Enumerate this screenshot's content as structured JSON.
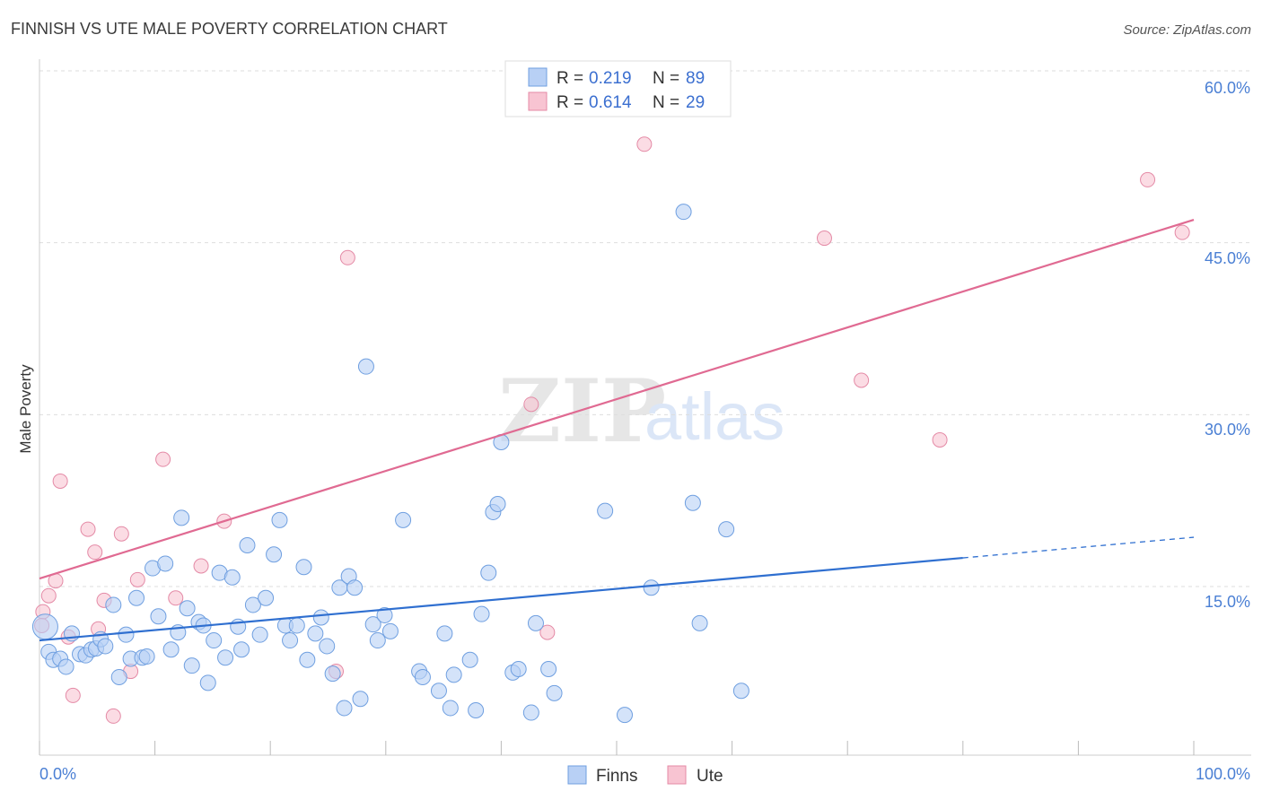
{
  "title": "FINNISH VS UTE MALE POVERTY CORRELATION CHART",
  "source": "Source: ZipAtlas.com",
  "watermark": {
    "zip": "ZIP",
    "atlas": "atlas"
  },
  "colors": {
    "finns_fill": "#b8d0f5",
    "finns_stroke": "#6f9fe0",
    "finns_line": "#2f6fd0",
    "ute_fill": "#f8c4d2",
    "ute_stroke": "#e48aa6",
    "ute_line": "#e06a92",
    "tick_text": "#4a7fd4",
    "grid": "#dddddd"
  },
  "legend_box": {
    "rows": [
      {
        "series": "Finns",
        "r_label": "R =",
        "r_value": "0.219",
        "n_label": "N =",
        "n_value": "89"
      },
      {
        "series": "Ute",
        "r_label": "R =",
        "r_value": "0.614",
        "n_label": "N =",
        "n_value": "29"
      }
    ]
  },
  "bottom_legend": [
    "Finns",
    "Ute"
  ],
  "chart_data": {
    "type": "scatter",
    "title": "FINNISH VS UTE MALE POVERTY CORRELATION CHART",
    "ylabel": "Male Poverty",
    "xlabel": "",
    "x_tick_labels": [
      "0.0%",
      "100.0%"
    ],
    "y_tick_labels": [
      "15.0%",
      "30.0%",
      "45.0%",
      "60.0%"
    ],
    "y_ticks": [
      15,
      30,
      45,
      60
    ],
    "xlim": [
      0,
      100
    ],
    "ylim": [
      0,
      62
    ],
    "grid": "horizontal dashed",
    "legend_position": "top-center",
    "series": [
      {
        "name": "Finns",
        "r": 0.219,
        "n": 89,
        "trend": {
          "x0": 0,
          "y0": 10.3,
          "x1": 80,
          "y1": 17.5,
          "dashed_to_x": 100,
          "dashed_to_y": 19.3
        },
        "points": [
          [
            0.5,
            11.5
          ],
          [
            0.8,
            9.3
          ],
          [
            1.2,
            8.6
          ],
          [
            1.8,
            8.7
          ],
          [
            2.3,
            8.0
          ],
          [
            2.8,
            10.9
          ],
          [
            3.5,
            9.1
          ],
          [
            4.0,
            9.0
          ],
          [
            4.5,
            9.5
          ],
          [
            4.9,
            9.6
          ],
          [
            5.3,
            10.4
          ],
          [
            5.7,
            9.8
          ],
          [
            6.4,
            13.4
          ],
          [
            6.9,
            7.1
          ],
          [
            7.5,
            10.8
          ],
          [
            7.9,
            8.7
          ],
          [
            8.4,
            14.0
          ],
          [
            8.9,
            8.8
          ],
          [
            9.3,
            8.9
          ],
          [
            9.8,
            16.6
          ],
          [
            10.3,
            12.4
          ],
          [
            10.9,
            17.0
          ],
          [
            11.4,
            9.5
          ],
          [
            12.0,
            11.0
          ],
          [
            12.3,
            21.0
          ],
          [
            12.8,
            13.1
          ],
          [
            13.2,
            8.1
          ],
          [
            13.8,
            11.9
          ],
          [
            14.2,
            11.6
          ],
          [
            14.6,
            6.6
          ],
          [
            15.1,
            10.3
          ],
          [
            15.6,
            16.2
          ],
          [
            16.1,
            8.8
          ],
          [
            16.7,
            15.8
          ],
          [
            17.2,
            11.5
          ],
          [
            17.5,
            9.5
          ],
          [
            18.0,
            18.6
          ],
          [
            18.5,
            13.4
          ],
          [
            19.1,
            10.8
          ],
          [
            19.6,
            14.0
          ],
          [
            20.3,
            17.8
          ],
          [
            20.8,
            20.8
          ],
          [
            21.3,
            11.6
          ],
          [
            21.7,
            10.3
          ],
          [
            22.3,
            11.6
          ],
          [
            22.9,
            16.7
          ],
          [
            23.2,
            8.6
          ],
          [
            23.9,
            10.9
          ],
          [
            24.4,
            12.3
          ],
          [
            24.9,
            9.8
          ],
          [
            25.4,
            7.4
          ],
          [
            26.0,
            14.9
          ],
          [
            26.4,
            4.4
          ],
          [
            26.8,
            15.9
          ],
          [
            27.3,
            14.9
          ],
          [
            27.8,
            5.2
          ],
          [
            28.3,
            34.2
          ],
          [
            28.9,
            11.7
          ],
          [
            29.3,
            10.3
          ],
          [
            29.9,
            12.5
          ],
          [
            30.4,
            11.1
          ],
          [
            31.5,
            20.8
          ],
          [
            32.9,
            7.6
          ],
          [
            33.2,
            7.1
          ],
          [
            34.6,
            5.9
          ],
          [
            35.1,
            10.9
          ],
          [
            35.6,
            4.4
          ],
          [
            35.9,
            7.3
          ],
          [
            37.3,
            8.6
          ],
          [
            37.8,
            4.2
          ],
          [
            38.3,
            12.6
          ],
          [
            38.9,
            16.2
          ],
          [
            39.3,
            21.5
          ],
          [
            39.7,
            22.2
          ],
          [
            40.0,
            27.6
          ],
          [
            41.0,
            7.5
          ],
          [
            41.5,
            7.8
          ],
          [
            42.6,
            4.0
          ],
          [
            43.0,
            11.8
          ],
          [
            44.1,
            7.8
          ],
          [
            44.6,
            5.7
          ],
          [
            49.0,
            21.6
          ],
          [
            50.7,
            3.8
          ],
          [
            53.0,
            14.9
          ],
          [
            55.8,
            47.7
          ],
          [
            56.6,
            22.3
          ],
          [
            57.2,
            11.8
          ],
          [
            59.5,
            20.0
          ],
          [
            60.8,
            5.9
          ]
        ]
      },
      {
        "name": "Ute",
        "r": 0.614,
        "n": 29,
        "trend": {
          "x0": 0,
          "y0": 15.7,
          "x1": 100,
          "y1": 47.0
        },
        "points": [
          [
            0.3,
            12.8
          ],
          [
            0.8,
            14.2
          ],
          [
            1.4,
            15.5
          ],
          [
            1.8,
            24.2
          ],
          [
            2.5,
            10.6
          ],
          [
            2.9,
            5.5
          ],
          [
            4.2,
            20.0
          ],
          [
            4.8,
            18.0
          ],
          [
            5.1,
            11.3
          ],
          [
            5.6,
            13.8
          ],
          [
            6.4,
            3.7
          ],
          [
            7.1,
            19.6
          ],
          [
            7.9,
            7.6
          ],
          [
            8.5,
            15.6
          ],
          [
            10.7,
            26.1
          ],
          [
            11.8,
            14.0
          ],
          [
            14.0,
            16.8
          ],
          [
            16.0,
            20.7
          ],
          [
            25.7,
            7.6
          ],
          [
            26.7,
            43.7
          ],
          [
            42.6,
            30.9
          ],
          [
            44.0,
            11.0
          ],
          [
            52.4,
            53.6
          ],
          [
            68.0,
            45.4
          ],
          [
            71.2,
            33.0
          ],
          [
            78.0,
            27.8
          ],
          [
            96.0,
            50.5
          ],
          [
            99.0,
            45.9
          ],
          [
            0.2,
            11.6
          ]
        ]
      }
    ]
  }
}
